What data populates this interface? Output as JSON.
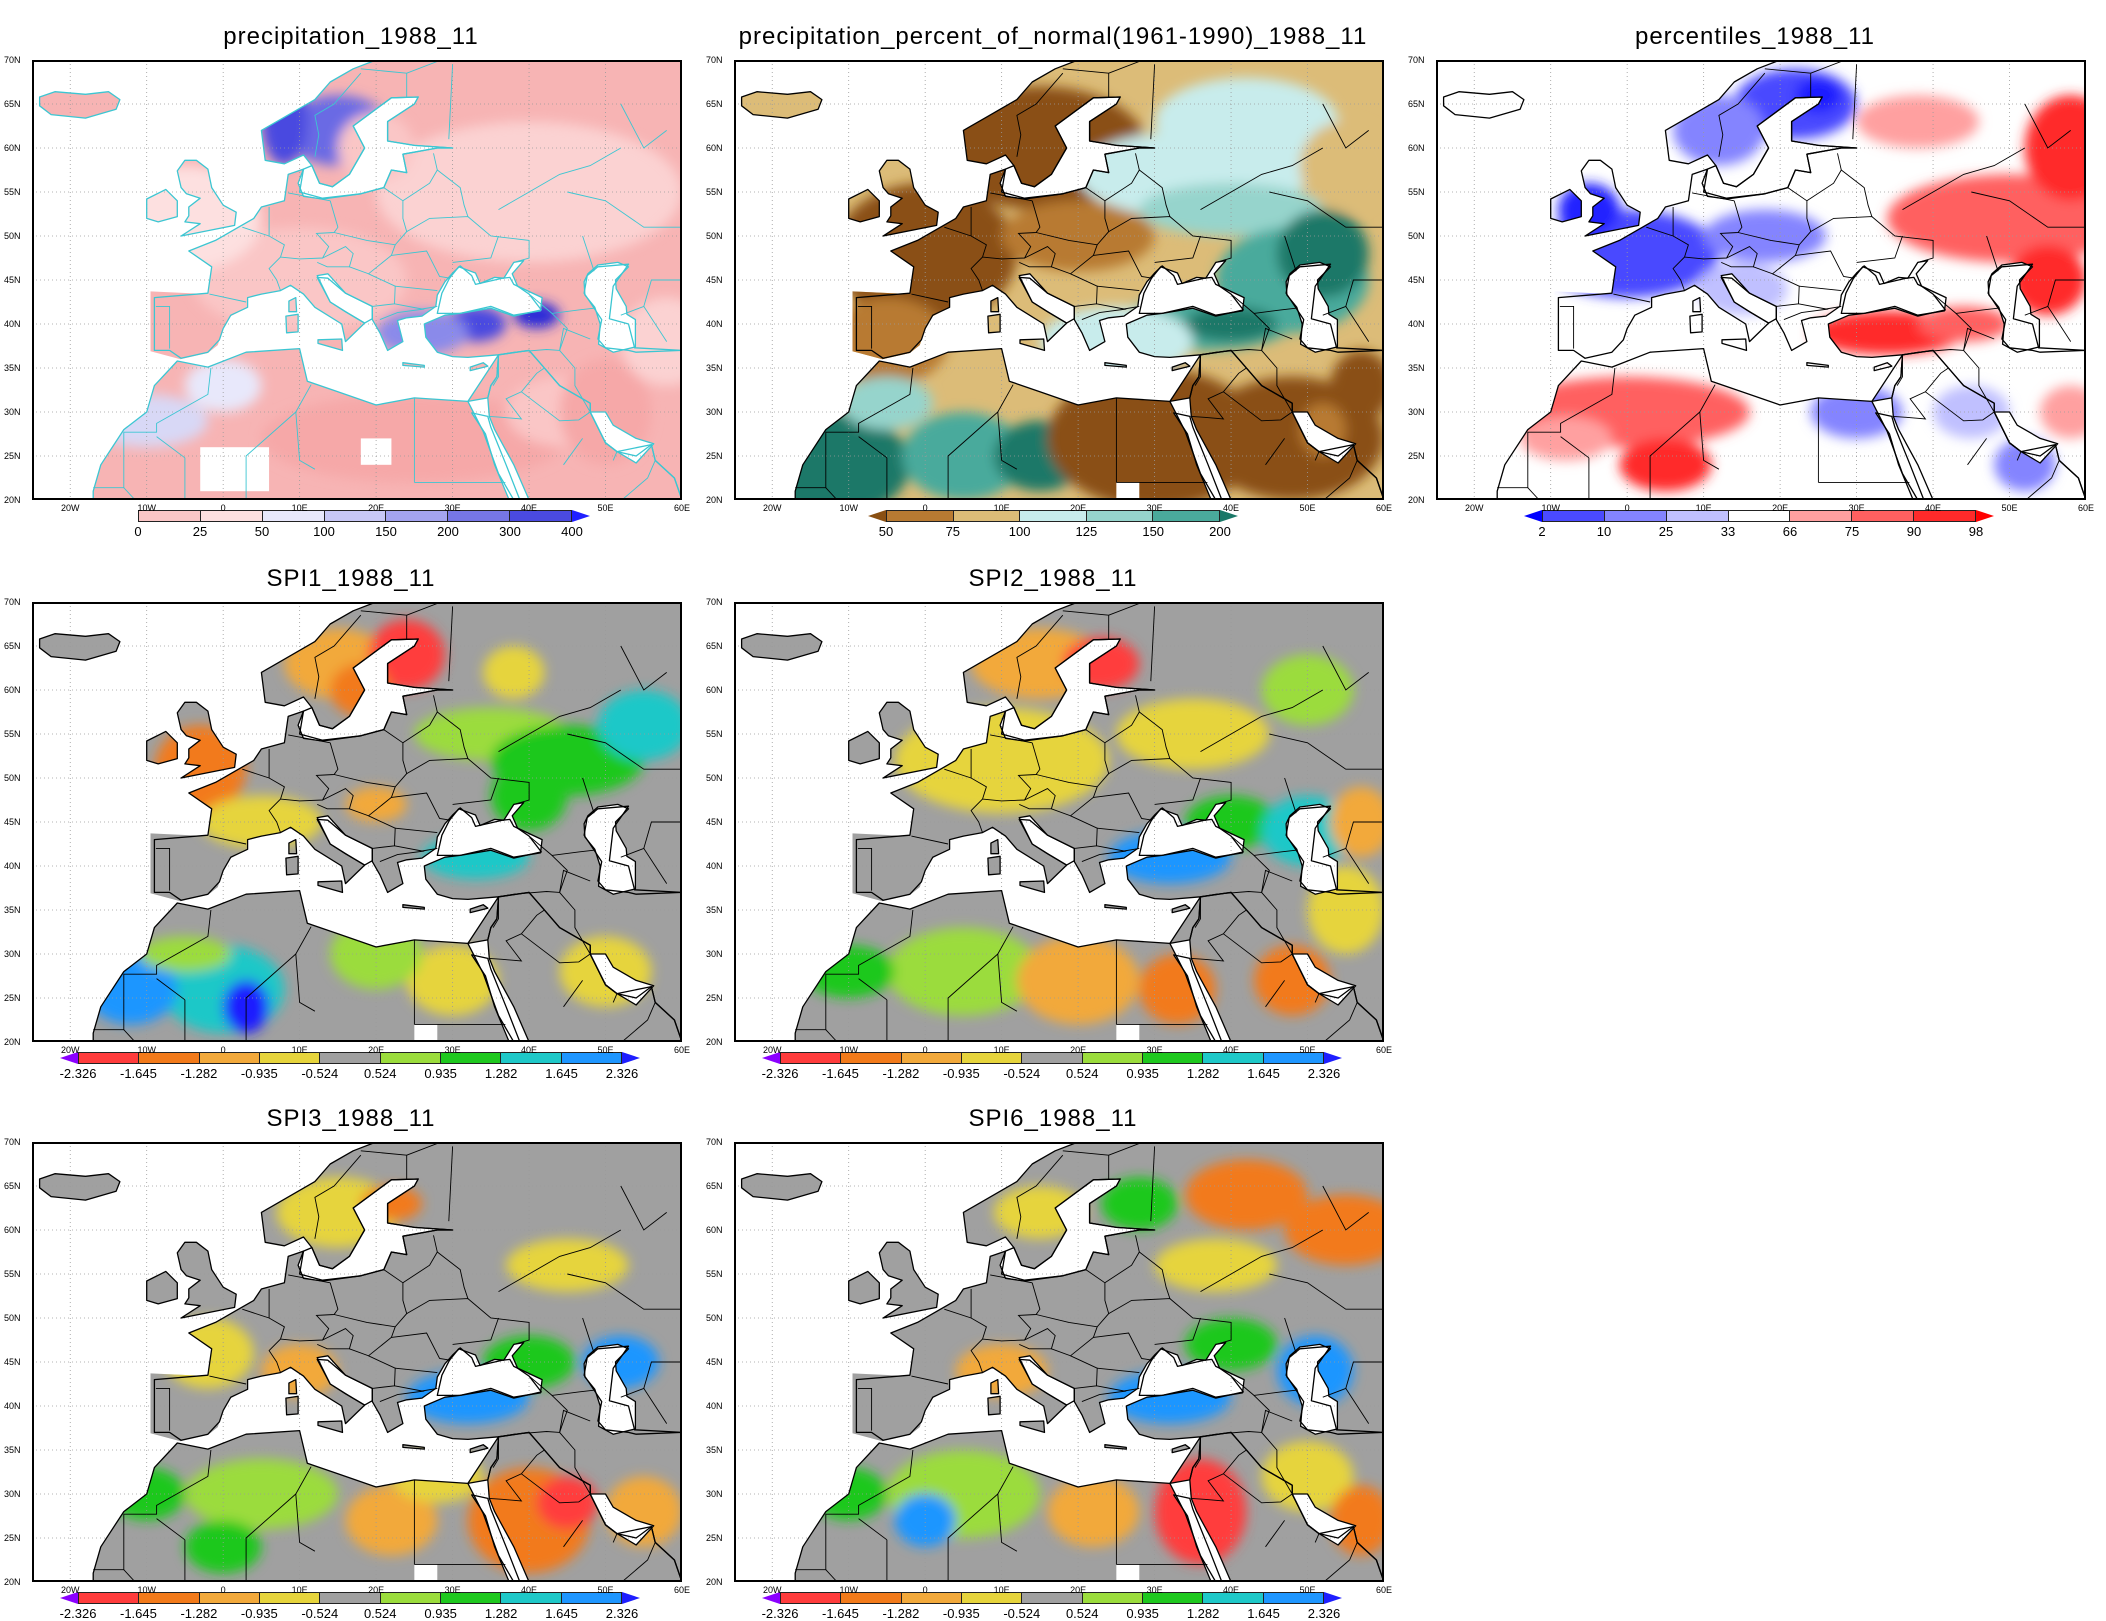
{
  "figure": {
    "lat_ticks": [
      "70N",
      "65N",
      "60N",
      "55N",
      "50N",
      "45N",
      "40N",
      "35N",
      "30N",
      "25N",
      "20N"
    ],
    "lon_ticks": [
      "20W",
      "10W",
      "0",
      "10E",
      "20E",
      "30E",
      "40E",
      "50E",
      "60E"
    ]
  },
  "panels": [
    {
      "id": "precip",
      "title": "precipitation_1988_11",
      "style": "precip",
      "scale": {
        "labels": [
          "0",
          "25",
          "50",
          "100",
          "150",
          "200",
          "300",
          "400"
        ],
        "colors": [
          "#f6a8a8",
          "#fac6c6",
          "#fde0e0",
          "#e8e8fb",
          "#c8c8f6",
          "#a4a4f0",
          "#7676e6",
          "#4a4ae0",
          "#2222dd"
        ],
        "left_arrow_color": "#ffffff",
        "right_arrow_color": "#2020ff"
      }
    },
    {
      "id": "percent",
      "title": "precipitation_percent_of_normal(1961-1990)_1988_11",
      "style": "percent",
      "scale": {
        "labels": [
          "50",
          "75",
          "100",
          "125",
          "150",
          "200"
        ],
        "colors": [
          "#8a5013",
          "#b87a32",
          "#dcbc78",
          "#c8ecec",
          "#96d4cc",
          "#4aaa9c",
          "#1a7868"
        ],
        "left_arrow_color": "#8a5013",
        "right_arrow_color": "#1a7868"
      }
    },
    {
      "id": "percentiles",
      "title": "percentiles_1988_11",
      "style": "percentiles",
      "scale": {
        "labels": [
          "2",
          "10",
          "25",
          "33",
          "66",
          "75",
          "90",
          "98"
        ],
        "colors": [
          "#1a1aff",
          "#4a4aff",
          "#8484ff",
          "#c0c0ff",
          "#ffffff",
          "#ffa0a0",
          "#ff6060",
          "#ff2a2a",
          "#ff0000"
        ],
        "left_arrow_color": "#0000ff",
        "right_arrow_color": "#ff0000"
      }
    },
    {
      "id": "spi1",
      "title": "SPI1_1988_11",
      "style": "spi1",
      "scale": {
        "labels": [
          "-2.326",
          "-1.645",
          "-1.282",
          "-0.935",
          "-0.524",
          "0.524",
          "0.935",
          "1.282",
          "1.645",
          "2.326"
        ],
        "colors": [
          "#8b00ff",
          "#ff3c3c",
          "#f27a1a",
          "#f2a93b",
          "#e6d43c",
          "#a0a0a0",
          "#9bdc3c",
          "#1ec81e",
          "#1ec8c8",
          "#1e96ff",
          "#1e1eff"
        ],
        "left_arrow_color": "#8b00ff",
        "right_arrow_color": "#1e1eff"
      }
    },
    {
      "id": "spi2",
      "title": "SPI2_1988_11",
      "style": "spi2",
      "scale": {
        "labels": [
          "-2.326",
          "-1.645",
          "-1.282",
          "-0.935",
          "-0.524",
          "0.524",
          "0.935",
          "1.282",
          "1.645",
          "2.326"
        ],
        "colors": [
          "#8b00ff",
          "#ff3c3c",
          "#f27a1a",
          "#f2a93b",
          "#e6d43c",
          "#a0a0a0",
          "#9bdc3c",
          "#1ec81e",
          "#1ec8c8",
          "#1e96ff",
          "#1e1eff"
        ],
        "left_arrow_color": "#8b00ff",
        "right_arrow_color": "#1e1eff"
      }
    },
    {
      "id": "spi3",
      "title": "SPI3_1988_11",
      "style": "spi3",
      "scale": {
        "labels": [
          "-2.326",
          "-1.645",
          "-1.282",
          "-0.935",
          "-0.524",
          "0.524",
          "0.935",
          "1.282",
          "1.645",
          "2.326"
        ],
        "colors": [
          "#8b00ff",
          "#ff3c3c",
          "#f27a1a",
          "#f2a93b",
          "#e6d43c",
          "#a0a0a0",
          "#9bdc3c",
          "#1ec81e",
          "#1ec8c8",
          "#1e96ff",
          "#1e1eff"
        ],
        "left_arrow_color": "#8b00ff",
        "right_arrow_color": "#1e1eff"
      }
    },
    {
      "id": "spi6",
      "title": "SPI6_1988_11",
      "style": "spi6",
      "scale": {
        "labels": [
          "-2.326",
          "-1.645",
          "-1.282",
          "-0.935",
          "-0.524",
          "0.524",
          "0.935",
          "1.282",
          "1.645",
          "2.326"
        ],
        "colors": [
          "#8b00ff",
          "#ff3c3c",
          "#f27a1a",
          "#f2a93b",
          "#e6d43c",
          "#a0a0a0",
          "#9bdc3c",
          "#1ec81e",
          "#1ec8c8",
          "#1e96ff",
          "#1e1eff"
        ],
        "left_arrow_color": "#8b00ff",
        "right_arrow_color": "#1e1eff"
      }
    }
  ]
}
